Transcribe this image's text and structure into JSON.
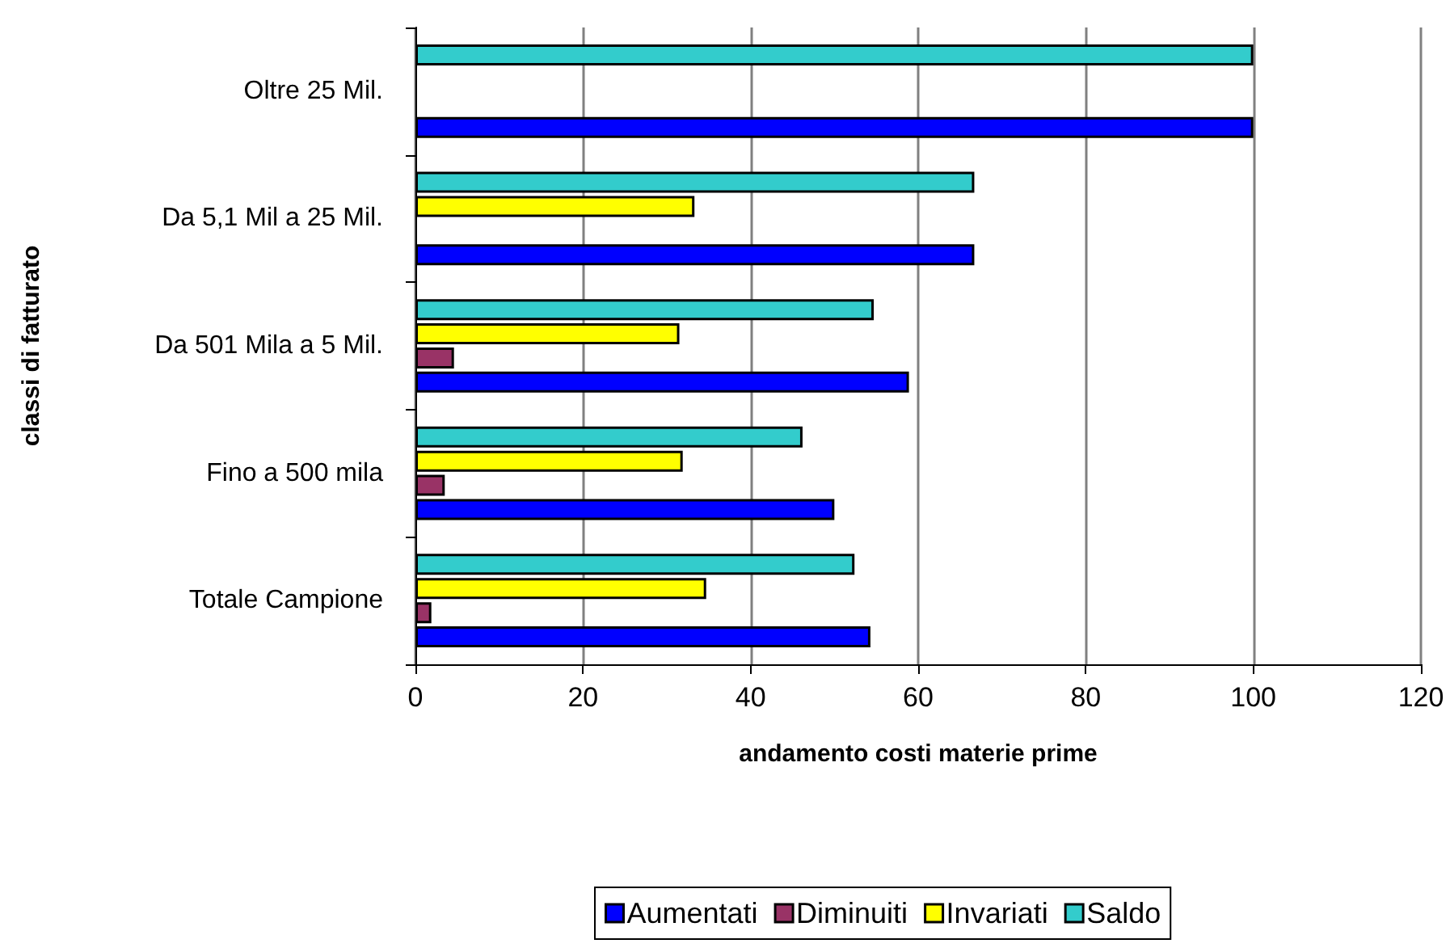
{
  "chart_data": {
    "type": "bar",
    "orientation": "horizontal",
    "xlabel": "andamento costi materie prime",
    "ylabel": "classi di fatturato",
    "categories": [
      "Oltre 25 Mil.",
      "Da 5,1 Mil a 25 Mil.",
      "Da 501 Mila a 5 Mil.",
      "Fino a 500 mila",
      "Totale Campione"
    ],
    "series": [
      {
        "name": "Aumentati",
        "color": "#0000ff",
        "values": [
          100,
          66.7,
          58.9,
          50,
          54.3
        ]
      },
      {
        "name": "Diminuiti",
        "color": "#993366",
        "values": [
          null,
          null,
          4.6,
          3.5,
          1.9
        ]
      },
      {
        "name": "Invariati",
        "color": "#ffff00",
        "values": [
          null,
          33.3,
          31.5,
          31.9,
          34.7
        ]
      },
      {
        "name": "Saldo",
        "color": "#33cccc",
        "values": [
          100,
          66.7,
          54.7,
          46.2,
          52.4
        ]
      }
    ],
    "xlim": [
      0,
      120
    ],
    "xticks": [
      0,
      20,
      40,
      60,
      80,
      100,
      120
    ],
    "grid": "x",
    "legend": "bottom"
  }
}
